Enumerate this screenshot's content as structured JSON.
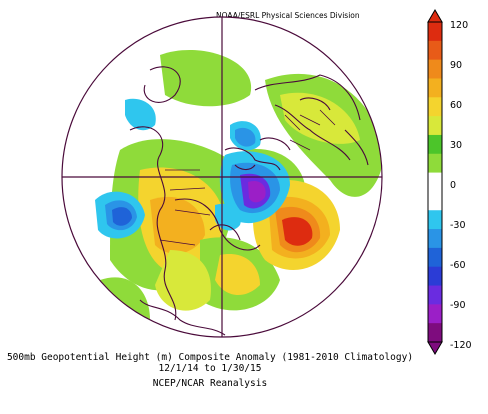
{
  "header": {
    "credit": "NOAA/ESRL Physical Sciences Division"
  },
  "caption": {
    "line1": "500mb Geopotential Height (m) Composite Anomaly (1981-2010 Climatology)",
    "line2": "12/1/14  to 1/30/15",
    "line3": "NCEP/NCAR Reanalysis"
  },
  "colorbar": {
    "ticks": [
      "120",
      "90",
      "60",
      "30",
      "0",
      "-30",
      "-60",
      "-90",
      "-120"
    ],
    "colors": [
      "#7e0c7e",
      "#9b1fc7",
      "#6a2ce0",
      "#2b3cd6",
      "#1f63d8",
      "#2a94e6",
      "#2fc6ee",
      "#ffffff",
      "#ffffff",
      "#8fdb3a",
      "#4cc52a",
      "#d8e83a",
      "#f4d42e",
      "#f3b01f",
      "#ef8a1b",
      "#e85b18",
      "#dd2c10"
    ]
  }
}
